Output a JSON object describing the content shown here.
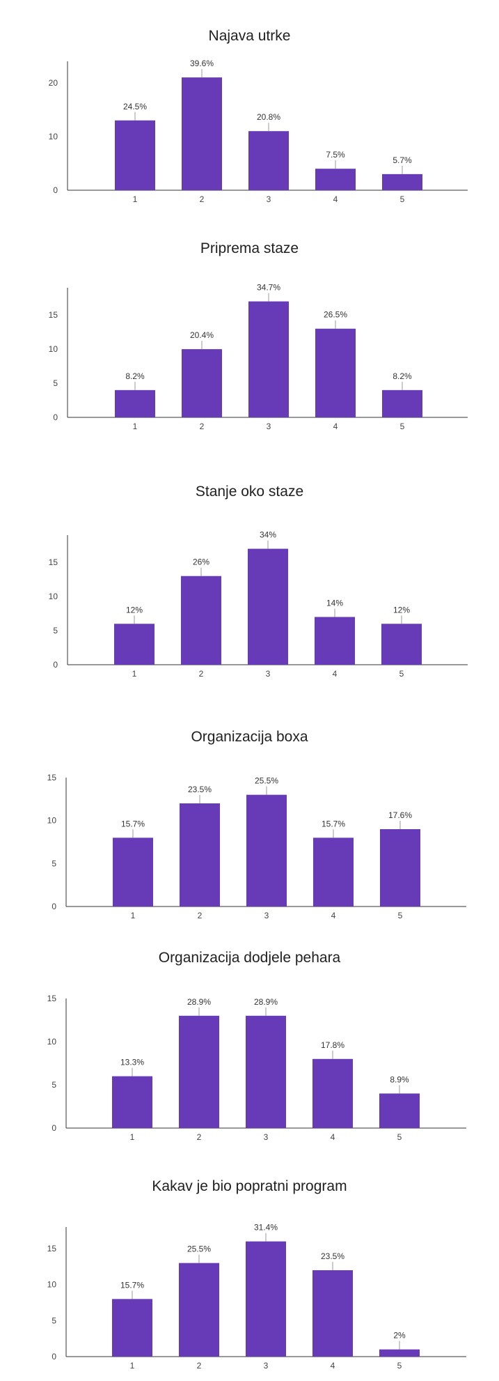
{
  "colors": {
    "bar": "#673ab7",
    "axis": "#333333",
    "leader": "#999999"
  },
  "chart_data": [
    {
      "type": "bar",
      "title": "Najava utrke",
      "categories": [
        "1",
        "2",
        "3",
        "4",
        "5"
      ],
      "values": [
        13,
        21,
        11,
        4,
        3
      ],
      "labels": [
        "24.5%",
        "39.6%",
        "20.8%",
        "7.5%",
        "5.7%"
      ],
      "yticks": [
        0,
        10,
        20
      ],
      "ylim": [
        0,
        24
      ],
      "grid": false
    },
    {
      "type": "bar",
      "title": "Priprema staze",
      "categories": [
        "1",
        "2",
        "3",
        "4",
        "5"
      ],
      "values": [
        4,
        10,
        17,
        13,
        4
      ],
      "labels": [
        "8.2%",
        "20.4%",
        "34.7%",
        "26.5%",
        "8.2%"
      ],
      "yticks": [
        0,
        5,
        10,
        15
      ],
      "ylim": [
        0,
        19
      ],
      "grid": false
    },
    {
      "type": "bar",
      "title": "Stanje oko staze",
      "categories": [
        "1",
        "2",
        "3",
        "4",
        "5"
      ],
      "values": [
        6,
        13,
        17,
        7,
        6
      ],
      "labels": [
        "12%",
        "26%",
        "34%",
        "14%",
        "12%"
      ],
      "yticks": [
        0,
        5,
        10,
        15
      ],
      "ylim": [
        0,
        19
      ],
      "grid": false
    },
    {
      "type": "bar",
      "title": "Organizacija boxa",
      "categories": [
        "1",
        "2",
        "3",
        "4",
        "5"
      ],
      "values": [
        8,
        12,
        13,
        8,
        9
      ],
      "labels": [
        "15.7%",
        "23.5%",
        "25.5%",
        "15.7%",
        "17.6%"
      ],
      "yticks": [
        0,
        5,
        10,
        15
      ],
      "ylim": [
        0,
        15
      ],
      "grid": false
    },
    {
      "type": "bar",
      "title": "Organizacija dodjele pehara",
      "categories": [
        "1",
        "2",
        "3",
        "4",
        "5"
      ],
      "values": [
        6,
        13,
        13,
        8,
        4
      ],
      "labels": [
        "13.3%",
        "28.9%",
        "28.9%",
        "17.8%",
        "8.9%"
      ],
      "yticks": [
        0,
        5,
        10,
        15
      ],
      "ylim": [
        0,
        15
      ],
      "grid": false
    },
    {
      "type": "bar",
      "title": "Kakav je bio popratni program",
      "categories": [
        "1",
        "2",
        "3",
        "4",
        "5"
      ],
      "values": [
        8,
        13,
        16,
        12,
        1
      ],
      "labels": [
        "15.7%",
        "25.5%",
        "31.4%",
        "23.5%",
        "2%"
      ],
      "yticks": [
        0,
        5,
        10,
        15
      ],
      "ylim": [
        0,
        18
      ],
      "grid": false
    }
  ]
}
